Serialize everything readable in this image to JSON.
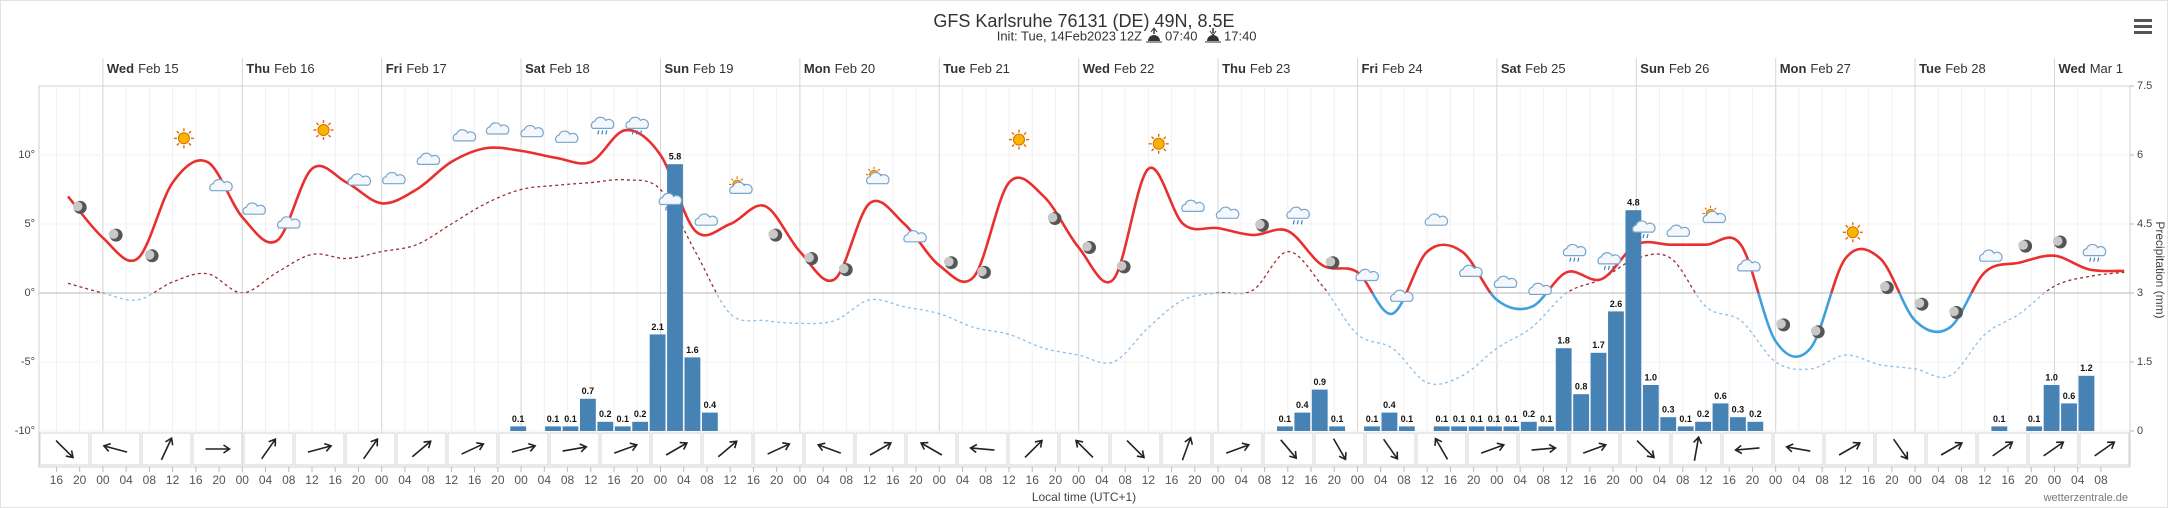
{
  "header": {
    "title": "GFS Karlsruhe 76131 (DE) 49N, 8.5E",
    "init": "Init: Tue, 14Feb2023 12Z",
    "sunrise": "07:40",
    "sunset": "17:40"
  },
  "chart_data": {
    "type": "meteogram",
    "x_label": "Local time (UTC+1)",
    "y2_label": "Precipitation (mm)",
    "credit": "wetterzentrale.de",
    "xlim": [
      "2023-02-14T13:00",
      "2023-03-01T13:00"
    ],
    "xticks": [
      {
        "value": "2023-02-14T16:00",
        "label": "16"
      },
      {
        "value": "2023-02-14T20:00",
        "label": "20"
      },
      {
        "value": "2023-02-15T00:00",
        "label": "00"
      },
      {
        "value": "2023-02-15T04:00",
        "label": "04"
      },
      {
        "value": "2023-02-15T08:00",
        "label": "08"
      },
      {
        "value": "2023-02-15T12:00",
        "label": "12"
      },
      {
        "value": "2023-02-15T16:00",
        "label": "16"
      },
      {
        "value": "2023-02-15T20:00",
        "label": "20"
      },
      {
        "value": "2023-02-16T00:00",
        "label": "00"
      },
      {
        "value": "2023-02-16T04:00",
        "label": "04"
      },
      {
        "value": "2023-02-16T08:00",
        "label": "08"
      },
      {
        "value": "2023-02-16T12:00",
        "label": "12"
      },
      {
        "value": "2023-02-16T16:00",
        "label": "16"
      },
      {
        "value": "2023-02-16T20:00",
        "label": "20"
      },
      {
        "value": "2023-02-17T00:00",
        "label": "00"
      },
      {
        "value": "2023-02-17T04:00",
        "label": "04"
      },
      {
        "value": "2023-02-17T08:00",
        "label": "08"
      },
      {
        "value": "2023-02-17T12:00",
        "label": "12"
      },
      {
        "value": "2023-02-17T16:00",
        "label": "16"
      },
      {
        "value": "2023-02-17T20:00",
        "label": "20"
      },
      {
        "value": "2023-02-18T00:00",
        "label": "00"
      },
      {
        "value": "2023-02-18T04:00",
        "label": "04"
      },
      {
        "value": "2023-02-18T08:00",
        "label": "08"
      },
      {
        "value": "2023-02-18T12:00",
        "label": "12"
      },
      {
        "value": "2023-02-18T16:00",
        "label": "16"
      },
      {
        "value": "2023-02-18T20:00",
        "label": "20"
      },
      {
        "value": "2023-02-19T00:00",
        "label": "00"
      },
      {
        "value": "2023-02-19T04:00",
        "label": "04"
      },
      {
        "value": "2023-02-19T08:00",
        "label": "08"
      },
      {
        "value": "2023-02-19T12:00",
        "label": "12"
      },
      {
        "value": "2023-02-19T16:00",
        "label": "16"
      },
      {
        "value": "2023-02-19T20:00",
        "label": "20"
      },
      {
        "value": "2023-02-20T00:00",
        "label": "00"
      },
      {
        "value": "2023-02-20T04:00",
        "label": "04"
      },
      {
        "value": "2023-02-20T08:00",
        "label": "08"
      },
      {
        "value": "2023-02-20T12:00",
        "label": "12"
      },
      {
        "value": "2023-02-20T16:00",
        "label": "16"
      },
      {
        "value": "2023-02-20T20:00",
        "label": "20"
      },
      {
        "value": "2023-02-21T00:00",
        "label": "00"
      },
      {
        "value": "2023-02-21T04:00",
        "label": "04"
      },
      {
        "value": "2023-02-21T08:00",
        "label": "08"
      },
      {
        "value": "2023-02-21T12:00",
        "label": "12"
      },
      {
        "value": "2023-02-21T16:00",
        "label": "16"
      },
      {
        "value": "2023-02-21T20:00",
        "label": "20"
      },
      {
        "value": "2023-02-22T00:00",
        "label": "00"
      },
      {
        "value": "2023-02-22T04:00",
        "label": "04"
      },
      {
        "value": "2023-02-22T08:00",
        "label": "08"
      },
      {
        "value": "2023-02-22T12:00",
        "label": "12"
      },
      {
        "value": "2023-02-22T16:00",
        "label": "16"
      },
      {
        "value": "2023-02-22T20:00",
        "label": "20"
      },
      {
        "value": "2023-02-23T00:00",
        "label": "00"
      },
      {
        "value": "2023-02-23T04:00",
        "label": "04"
      },
      {
        "value": "2023-02-23T08:00",
        "label": "08"
      },
      {
        "value": "2023-02-23T12:00",
        "label": "12"
      },
      {
        "value": "2023-02-23T16:00",
        "label": "16"
      },
      {
        "value": "2023-02-23T20:00",
        "label": "20"
      },
      {
        "value": "2023-02-24T00:00",
        "label": "00"
      },
      {
        "value": "2023-02-24T04:00",
        "label": "04"
      },
      {
        "value": "2023-02-24T08:00",
        "label": "08"
      },
      {
        "value": "2023-02-24T12:00",
        "label": "12"
      },
      {
        "value": "2023-02-24T16:00",
        "label": "16"
      },
      {
        "value": "2023-02-24T20:00",
        "label": "20"
      },
      {
        "value": "2023-02-25T00:00",
        "label": "00"
      },
      {
        "value": "2023-02-25T04:00",
        "label": "04"
      },
      {
        "value": "2023-02-25T08:00",
        "label": "08"
      },
      {
        "value": "2023-02-25T12:00",
        "label": "12"
      },
      {
        "value": "2023-02-25T16:00",
        "label": "16"
      },
      {
        "value": "2023-02-25T20:00",
        "label": "20"
      },
      {
        "value": "2023-02-26T00:00",
        "label": "00"
      },
      {
        "value": "2023-02-26T04:00",
        "label": "04"
      },
      {
        "value": "2023-02-26T08:00",
        "label": "08"
      },
      {
        "value": "2023-02-26T12:00",
        "label": "12"
      },
      {
        "value": "2023-02-26T16:00",
        "label": "16"
      },
      {
        "value": "2023-02-26T20:00",
        "label": "20"
      },
      {
        "value": "2023-02-27T00:00",
        "label": "00"
      },
      {
        "value": "2023-02-27T04:00",
        "label": "04"
      },
      {
        "value": "2023-02-27T08:00",
        "label": "08"
      },
      {
        "value": "2023-02-27T12:00",
        "label": "12"
      },
      {
        "value": "2023-02-27T16:00",
        "label": "16"
      },
      {
        "value": "2023-02-27T20:00",
        "label": "20"
      },
      {
        "value": "2023-02-28T00:00",
        "label": "00"
      },
      {
        "value": "2023-02-28T04:00",
        "label": "04"
      },
      {
        "value": "2023-02-28T08:00",
        "label": "08"
      },
      {
        "value": "2023-02-28T12:00",
        "label": "12"
      },
      {
        "value": "2023-02-28T16:00",
        "label": "16"
      },
      {
        "value": "2023-02-28T20:00",
        "label": "20"
      },
      {
        "value": "2023-03-01T00:00",
        "label": "00"
      },
      {
        "value": "2023-03-01T04:00",
        "label": "04"
      },
      {
        "value": "2023-03-01T08:00",
        "label": "08"
      }
    ],
    "days": [
      {
        "x": "2023-02-15T00:00",
        "weekday": "Wed",
        "date": "Feb 15"
      },
      {
        "x": "2023-02-16T00:00",
        "weekday": "Thu",
        "date": "Feb 16"
      },
      {
        "x": "2023-02-17T00:00",
        "weekday": "Fri",
        "date": "Feb 17"
      },
      {
        "x": "2023-02-18T00:00",
        "weekday": "Sat",
        "date": "Feb 18"
      },
      {
        "x": "2023-02-19T00:00",
        "weekday": "Sun",
        "date": "Feb 19"
      },
      {
        "x": "2023-02-20T00:00",
        "weekday": "Mon",
        "date": "Feb 20"
      },
      {
        "x": "2023-02-21T00:00",
        "weekday": "Tue",
        "date": "Feb 21"
      },
      {
        "x": "2023-02-22T00:00",
        "weekday": "Wed",
        "date": "Feb 22"
      },
      {
        "x": "2023-02-23T00:00",
        "weekday": "Thu",
        "date": "Feb 23"
      },
      {
        "x": "2023-02-24T00:00",
        "weekday": "Fri",
        "date": "Feb 24"
      },
      {
        "x": "2023-02-25T00:00",
        "weekday": "Sat",
        "date": "Feb 25"
      },
      {
        "x": "2023-02-26T00:00",
        "weekday": "Sun",
        "date": "Feb 26"
      },
      {
        "x": "2023-02-27T00:00",
        "weekday": "Mon",
        "date": "Feb 27"
      },
      {
        "x": "2023-02-28T00:00",
        "weekday": "Tue",
        "date": "Feb 28"
      },
      {
        "x": "2023-03-01T00:00",
        "weekday": "Wed",
        "date": "Mar 1"
      }
    ],
    "ylim": [
      -10,
      15
    ],
    "yticks": [
      {
        "value": -10,
        "label": "-10°"
      },
      {
        "value": -5,
        "label": "-5°"
      },
      {
        "value": 0,
        "label": "0°"
      },
      {
        "value": 5,
        "label": "5°"
      },
      {
        "value": 10,
        "label": "10°"
      }
    ],
    "y2lim": [
      0,
      7.5
    ],
    "y2ticks": [
      0,
      1.5,
      3,
      4.5,
      6,
      7.5
    ],
    "grid": true,
    "x": [
      "2023-02-14T18:00",
      "2023-02-15T00:00",
      "2023-02-15T06:00",
      "2023-02-15T12:00",
      "2023-02-15T18:00",
      "2023-02-16T00:00",
      "2023-02-16T06:00",
      "2023-02-16T12:00",
      "2023-02-16T18:00",
      "2023-02-17T00:00",
      "2023-02-17T06:00",
      "2023-02-17T12:00",
      "2023-02-17T18:00",
      "2023-02-18T00:00",
      "2023-02-18T06:00",
      "2023-02-18T12:00",
      "2023-02-18T18:00",
      "2023-02-19T00:00",
      "2023-02-19T06:00",
      "2023-02-19T12:00",
      "2023-02-19T18:00",
      "2023-02-20T00:00",
      "2023-02-20T06:00",
      "2023-02-20T12:00",
      "2023-02-20T18:00",
      "2023-02-21T00:00",
      "2023-02-21T06:00",
      "2023-02-21T12:00",
      "2023-02-21T18:00",
      "2023-02-22T00:00",
      "2023-02-22T06:00",
      "2023-02-22T12:00",
      "2023-02-22T18:00",
      "2023-02-23T00:00",
      "2023-02-23T06:00",
      "2023-02-23T12:00",
      "2023-02-23T18:00",
      "2023-02-24T00:00",
      "2023-02-24T06:00",
      "2023-02-24T12:00",
      "2023-02-24T18:00",
      "2023-02-25T00:00",
      "2023-02-25T06:00",
      "2023-02-25T12:00",
      "2023-02-25T18:00",
      "2023-02-26T00:00",
      "2023-02-26T06:00",
      "2023-02-26T12:00",
      "2023-02-26T18:00",
      "2023-02-27T00:00",
      "2023-02-27T06:00",
      "2023-02-27T12:00",
      "2023-02-27T18:00",
      "2023-02-28T00:00",
      "2023-02-28T06:00",
      "2023-02-28T12:00",
      "2023-02-28T18:00",
      "2023-03-01T00:00",
      "2023-03-01T06:00",
      "2023-03-01T12:00"
    ],
    "series": [
      {
        "type": "line",
        "color": "#e8312f",
        "cold_color": "#3ea0dc",
        "dashed": false,
        "values": [
          7,
          4,
          2.5,
          8,
          9.5,
          5.5,
          3.8,
          9,
          8,
          6.5,
          7.5,
          9.5,
          10.5,
          10.3,
          9.8,
          9.5,
          11.8,
          10,
          4.5,
          5,
          6.3,
          3,
          1,
          6.5,
          5,
          2,
          1.2,
          8,
          7,
          3.3,
          1,
          9,
          5,
          4.7,
          4.2,
          4.5,
          2,
          1.5,
          -1.5,
          3,
          3,
          -0.5,
          -1,
          1.5,
          1,
          3.5,
          3.5,
          3.5,
          3.5,
          -3.5,
          -4,
          2.5,
          2.5,
          -2,
          -2.5,
          1.5,
          2.2,
          2.7,
          1.7,
          1.6
        ]
      },
      {
        "type": "line",
        "color": "#9b2d2d",
        "cold_color": "#8fbfe8",
        "dashed": true,
        "values": [
          0.7,
          0,
          -0.5,
          0.8,
          1.4,
          0,
          1.5,
          2.8,
          2.5,
          3,
          3.5,
          5,
          6.5,
          7.5,
          7.8,
          8,
          8.2,
          7.5,
          3,
          -1.5,
          -2,
          -2.2,
          -2,
          -0.5,
          -1,
          -1.5,
          -2.5,
          -3,
          -4,
          -4.5,
          -5,
          -2.5,
          -0.5,
          0,
          0.2,
          3,
          0.5,
          -3,
          -4,
          -6.5,
          -6,
          -4,
          -2.5,
          0,
          1,
          2.5,
          2.5,
          -1,
          -2,
          -5,
          -5.5,
          -4.5,
          -5.2,
          -5.5,
          -6,
          -3,
          -1.5,
          0.5,
          1.2,
          1.5
        ]
      },
      {
        "type": "bar",
        "axis": "y2",
        "color": "#4682b4",
        "x": [
          "2023-02-18T01:00",
          "2023-02-18T07:00",
          "2023-02-18T10:00",
          "2023-02-18T13:00",
          "2023-02-18T16:00",
          "2023-02-18T19:00",
          "2023-02-18T22:00",
          "2023-02-19T01:00",
          "2023-02-19T04:00",
          "2023-02-19T07:00",
          "2023-02-19T10:00",
          "2023-02-23T13:00",
          "2023-02-23T16:00",
          "2023-02-23T19:00",
          "2023-02-23T22:00",
          "2023-02-24T04:00",
          "2023-02-24T07:00",
          "2023-02-24T10:00",
          "2023-02-24T16:00",
          "2023-02-24T19:00",
          "2023-02-24T22:00",
          "2023-02-25T01:00",
          "2023-02-25T04:00",
          "2023-02-25T07:00",
          "2023-02-25T10:00",
          "2023-02-25T13:00",
          "2023-02-25T16:00",
          "2023-02-25T19:00",
          "2023-02-25T22:00",
          "2023-02-26T01:00",
          "2023-02-26T04:00",
          "2023-02-26T07:00",
          "2023-02-26T10:00",
          "2023-02-26T13:00",
          "2023-02-26T16:00",
          "2023-02-26T19:00",
          "2023-02-26T22:00",
          "2023-02-28T16:00",
          "2023-02-28T22:00",
          "2023-03-01T01:00",
          "2023-03-01T04:00",
          "2023-03-01T07:00"
        ],
        "values": [
          0.1,
          0.1,
          0.1,
          0.7,
          0.2,
          0.1,
          0.2,
          2.1,
          5.8,
          1.6,
          0.4,
          0.1,
          0.4,
          0.9,
          0.1,
          0.1,
          0.4,
          0.1,
          0.1,
          0.1,
          0.1,
          0.1,
          0.1,
          0.2,
          0.1,
          1.8,
          0.8,
          1.7,
          2.6,
          4.8,
          1.0,
          0.3,
          0.1,
          0.2,
          0.6,
          0.3,
          0.2,
          0.1,
          0.1,
          1.0,
          0.6,
          1.2
        ],
        "value_labels": [
          "0.1",
          "0.1",
          "0.1",
          "0.7",
          "0.2",
          "0.1",
          "0.2",
          "2.1",
          "5.8",
          "1.6",
          "0.4",
          "0.1",
          "0.4",
          "0.9",
          "0.1",
          "0.1",
          "0.4",
          "0.1",
          "0.1",
          "0.1",
          "0.1",
          "0.1",
          "0.1",
          "0.2",
          "0.1",
          "1.8",
          "0.8",
          "1.7",
          "2.6",
          "4.8",
          "1.0",
          "0.3",
          "0.1",
          "0.2",
          "0.6",
          "0.3",
          "0.2",
          "0.1",
          "0.1",
          "1.0",
          "0.6",
          "1.2"
        ]
      }
    ],
    "wind": {
      "direction": [
        135,
        285,
        25,
        90,
        35,
        75,
        35,
        50,
        65,
        75,
        80,
        70,
        60,
        50,
        65,
        290,
        60,
        300,
        275,
        45,
        315,
        135,
        20,
        70,
        140,
        150,
        145,
        330,
        70,
        85,
        70,
        135,
        10,
        265,
        280,
        60,
        145,
        60,
        55,
        55,
        55
      ]
    }
  }
}
